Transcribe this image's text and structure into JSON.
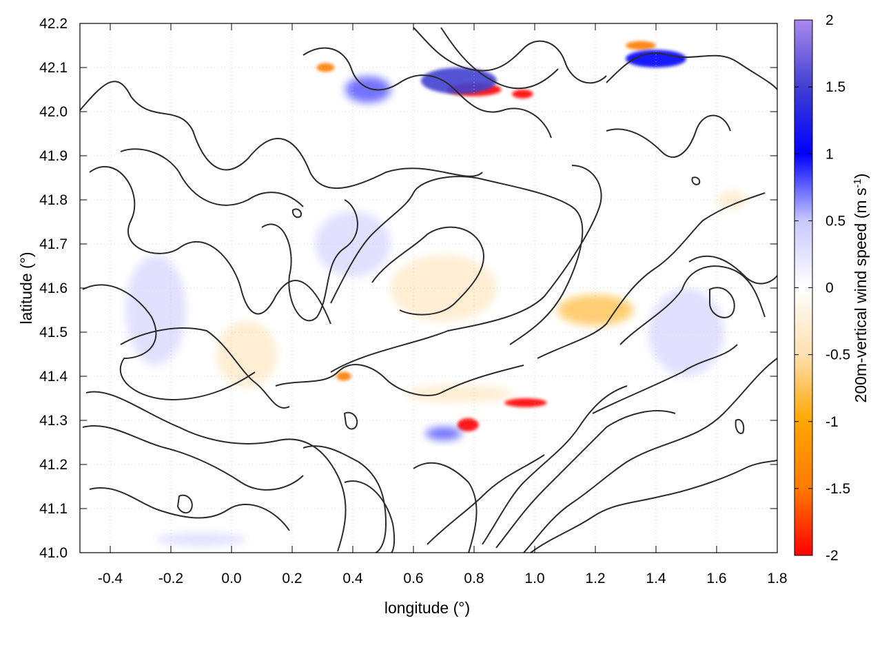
{
  "chart_data": {
    "type": "heatmap",
    "title": "",
    "xlabel": "longitude (°)",
    "ylabel": "latitude (°)",
    "colorbar_label_main": "200m-vertical wind speed (m s",
    "colorbar_label_sup": "-1",
    "colorbar_label_end": ")",
    "xlim": [
      -0.5,
      1.8
    ],
    "ylim": [
      41.0,
      42.2
    ],
    "x_ticks": [
      -0.4,
      -0.2,
      0.0,
      0.2,
      0.4,
      0.6,
      0.8,
      1.0,
      1.2,
      1.4,
      1.6,
      1.8
    ],
    "x_tick_labels": [
      "-0.4",
      "-0.2",
      "0.0",
      "0.2",
      "0.4",
      "0.6",
      "0.8",
      "1.0",
      "1.2",
      "1.4",
      "1.6",
      "1.8"
    ],
    "y_ticks": [
      41.0,
      41.1,
      41.2,
      41.3,
      41.4,
      41.5,
      41.6,
      41.7,
      41.8,
      41.9,
      42.0,
      42.1,
      42.2
    ],
    "y_tick_labels": [
      "41.0",
      "41.1",
      "41.2",
      "41.3",
      "41.4",
      "41.5",
      "41.6",
      "41.7",
      "41.8",
      "41.9",
      "42.0",
      "42.1",
      "42.2"
    ],
    "color_range": [
      -2,
      2
    ],
    "colorbar_ticks": [
      -2,
      -1.5,
      -1,
      -0.5,
      0,
      0.5,
      1,
      1.5,
      2
    ],
    "colorbar_tick_labels": [
      "-2",
      "-1.5",
      "-1",
      "-0.5",
      "0",
      "0.5",
      "1",
      "1.5",
      "2"
    ],
    "colormap": [
      "#ff0000",
      "#ff7a00",
      "#ffa500",
      "#ffe0b0",
      "#ffffff",
      "#c8c8ff",
      "#0000ff",
      "#4040d0",
      "#aa88ee"
    ],
    "grid": true,
    "features": [
      {
        "lon": 0.8,
        "lat": 42.05,
        "value": -2.0,
        "extent_lon": 0.18,
        "extent_lat": 0.03
      },
      {
        "lon": 0.96,
        "lat": 42.04,
        "value": -1.8,
        "extent_lon": 0.07,
        "extent_lat": 0.02
      },
      {
        "lon": 0.78,
        "lat": 41.29,
        "value": -2.0,
        "extent_lon": 0.07,
        "extent_lat": 0.03
      },
      {
        "lon": 0.97,
        "lat": 41.34,
        "value": -1.8,
        "extent_lon": 0.14,
        "extent_lat": 0.02
      },
      {
        "lon": 1.35,
        "lat": 42.15,
        "value": -1.6,
        "extent_lon": 0.1,
        "extent_lat": 0.02
      },
      {
        "lon": 0.31,
        "lat": 42.1,
        "value": -1.4,
        "extent_lon": 0.06,
        "extent_lat": 0.02
      },
      {
        "lon": 0.37,
        "lat": 41.4,
        "value": -1.3,
        "extent_lon": 0.05,
        "extent_lat": 0.02
      },
      {
        "lon": 1.2,
        "lat": 41.55,
        "value": -0.8,
        "extent_lon": 0.25,
        "extent_lat": 0.07
      },
      {
        "lon": 0.75,
        "lat": 41.36,
        "value": -0.7,
        "extent_lon": 0.35,
        "extent_lat": 0.04
      },
      {
        "lon": 1.65,
        "lat": 41.8,
        "value": -0.7,
        "extent_lon": 0.1,
        "extent_lat": 0.04
      },
      {
        "lon": 0.7,
        "lat": 41.6,
        "value": -0.3,
        "extent_lon": 0.35,
        "extent_lat": 0.15
      },
      {
        "lon": 0.05,
        "lat": 41.45,
        "value": -0.4,
        "extent_lon": 0.2,
        "extent_lat": 0.15
      },
      {
        "lon": 0.75,
        "lat": 42.07,
        "value": 1.3,
        "extent_lon": 0.25,
        "extent_lat": 0.06
      },
      {
        "lon": 0.45,
        "lat": 42.05,
        "value": 1.0,
        "extent_lon": 0.15,
        "extent_lat": 0.06
      },
      {
        "lon": 0.7,
        "lat": 41.27,
        "value": 1.0,
        "extent_lon": 0.12,
        "extent_lat": 0.03
      },
      {
        "lon": 1.4,
        "lat": 42.12,
        "value": 1.2,
        "extent_lon": 0.2,
        "extent_lat": 0.04
      },
      {
        "lon": -0.25,
        "lat": 41.55,
        "value": 0.6,
        "extent_lon": 0.2,
        "extent_lat": 0.25
      },
      {
        "lon": -0.1,
        "lat": 41.03,
        "value": 0.6,
        "extent_lon": 0.3,
        "extent_lat": 0.03
      },
      {
        "lon": 0.4,
        "lat": 41.7,
        "value": 0.5,
        "extent_lon": 0.25,
        "extent_lat": 0.15
      },
      {
        "lon": 1.5,
        "lat": 41.5,
        "value": 0.5,
        "extent_lon": 0.25,
        "extent_lat": 0.2
      },
      {
        "lon": 1.5,
        "lat": 41.1,
        "value": 0.05,
        "extent_lon": 0.3,
        "extent_lat": 0.1
      }
    ]
  }
}
